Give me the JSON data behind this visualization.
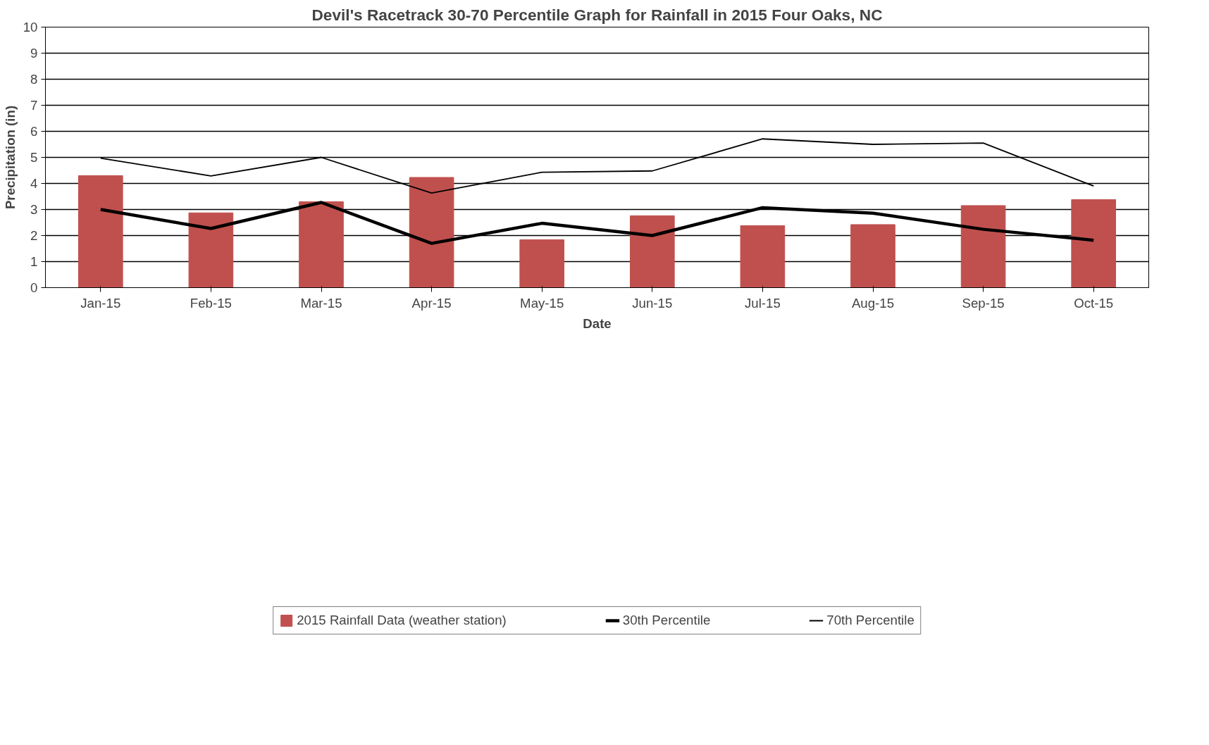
{
  "chart_data": {
    "type": "bar",
    "title": "Devil's Racetrack 30-70 Percentile Graph for Rainfall in 2015 Four Oaks, NC",
    "xlabel": "Date",
    "ylabel": "Precipitation (in)",
    "categories": [
      "Jan-15",
      "Feb-15",
      "Mar-15",
      "Apr-15",
      "May-15",
      "Jun-15",
      "Jul-15",
      "Aug-15",
      "Sep-15",
      "Oct-15"
    ],
    "series": [
      {
        "name": "2015 Rainfall Data (weather station)",
        "color": "#c0504d",
        "values": [
          4.3,
          2.87,
          3.3,
          4.23,
          1.84,
          2.76,
          2.38,
          2.42,
          3.15,
          3.38
        ]
      },
      {
        "name": "30th Percentile",
        "color": "#000000",
        "type": "line",
        "values": [
          3.0,
          2.27,
          3.27,
          1.7,
          2.47,
          2.0,
          3.07,
          2.86,
          2.24,
          1.82
        ]
      },
      {
        "name": "70th Percentile",
        "color": "#000000",
        "type": "line",
        "values": [
          4.97,
          4.29,
          5.0,
          3.63,
          4.43,
          4.48,
          5.71,
          5.5,
          5.55,
          3.9
        ]
      }
    ],
    "ylim": [
      0,
      10
    ],
    "yticks": [
      0,
      1,
      2,
      3,
      4,
      5,
      6,
      7,
      8,
      9,
      10
    ],
    "grid": "y",
    "legend": "bottom",
    "marker": "none",
    "line_style": "solid"
  }
}
